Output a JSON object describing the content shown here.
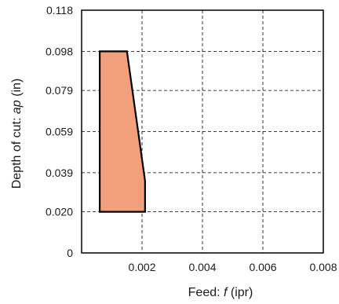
{
  "chart_data": {
    "type": "area",
    "title": "",
    "xlabel_prefix": "Feed: ",
    "xlabel_var": "f",
    "xlabel_unit": " (ipr)",
    "ylabel_prefix": "Depth of cut: ",
    "ylabel_var": "ap",
    "ylabel_unit": " (in)",
    "xlim": [
      0,
      0.008
    ],
    "ylim": [
      0,
      0.118
    ],
    "x_ticks": [
      {
        "value": 0.002,
        "label": "0.002"
      },
      {
        "value": 0.004,
        "label": "0.004"
      },
      {
        "value": 0.006,
        "label": "0.006"
      },
      {
        "value": 0.008,
        "label": "0.008"
      }
    ],
    "y_ticks": [
      {
        "value": 0,
        "label": "0"
      },
      {
        "value": 0.02,
        "label": "0.020"
      },
      {
        "value": 0.039,
        "label": "0.039"
      },
      {
        "value": 0.059,
        "label": "0.059"
      },
      {
        "value": 0.079,
        "label": "0.079"
      },
      {
        "value": 0.098,
        "label": "0.098"
      },
      {
        "value": 0.118,
        "label": "0.118"
      }
    ],
    "grid": true,
    "grid_style": "dashed",
    "region": {
      "fill_color": "#f2a07b",
      "edge_color": "#000000",
      "points": [
        {
          "x": 0.0006,
          "y": 0.02
        },
        {
          "x": 0.0006,
          "y": 0.098
        },
        {
          "x": 0.0015,
          "y": 0.098
        },
        {
          "x": 0.0021,
          "y": 0.035
        },
        {
          "x": 0.0021,
          "y": 0.02
        }
      ]
    }
  }
}
